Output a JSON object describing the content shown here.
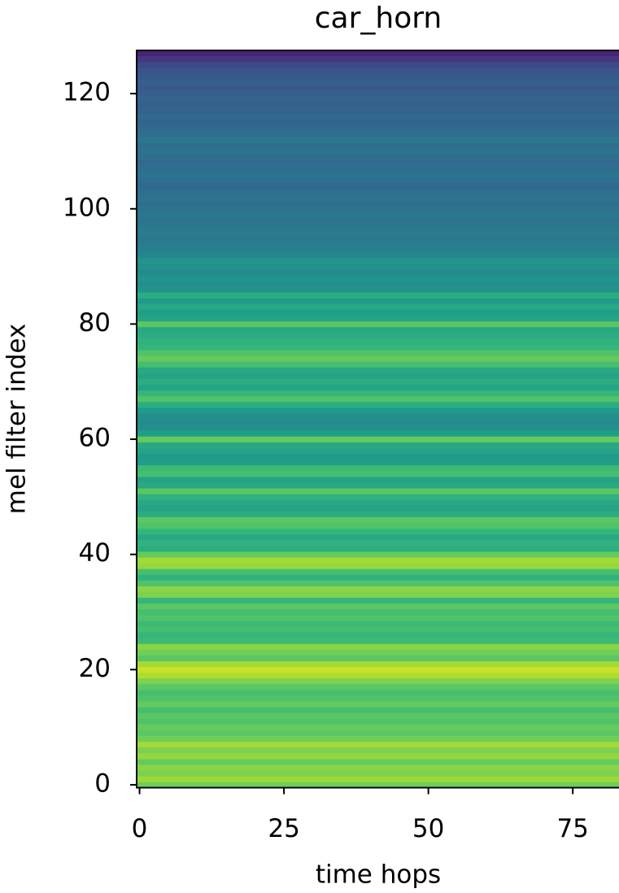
{
  "chart_data": {
    "type": "heatmap",
    "title": "car_horn",
    "xlabel": "time hops",
    "ylabel": "mel filter index",
    "colormap": "viridis",
    "zlim": [
      0,
      1
    ],
    "values": [
      0.78,
      0.85,
      0.8,
      0.82,
      0.76,
      0.84,
      0.8,
      0.86,
      0.78,
      0.74,
      0.76,
      0.72,
      0.74,
      0.7,
      0.76,
      0.72,
      0.7,
      0.74,
      0.8,
      0.88,
      0.92,
      0.86,
      0.74,
      0.78,
      0.82,
      0.68,
      0.66,
      0.7,
      0.68,
      0.72,
      0.7,
      0.74,
      0.66,
      0.8,
      0.82,
      0.72,
      0.64,
      0.7,
      0.84,
      0.86,
      0.76,
      0.62,
      0.64,
      0.6,
      0.66,
      0.72,
      0.74,
      0.62,
      0.58,
      0.6,
      0.64,
      0.74,
      0.6,
      0.58,
      0.7,
      0.68,
      0.56,
      0.54,
      0.58,
      0.6,
      0.76,
      0.56,
      0.5,
      0.48,
      0.5,
      0.54,
      0.62,
      0.72,
      0.66,
      0.58,
      0.62,
      0.58,
      0.6,
      0.7,
      0.76,
      0.72,
      0.66,
      0.64,
      0.62,
      0.6,
      0.74,
      0.58,
      0.56,
      0.6,
      0.54,
      0.62,
      0.52,
      0.5,
      0.52,
      0.48,
      0.5,
      0.52,
      0.46,
      0.44,
      0.42,
      0.4,
      0.42,
      0.4,
      0.38,
      0.4,
      0.38,
      0.36,
      0.38,
      0.36,
      0.34,
      0.36,
      0.38,
      0.36,
      0.34,
      0.36,
      0.38,
      0.36,
      0.4,
      0.36,
      0.34,
      0.32,
      0.34,
      0.32,
      0.3,
      0.32,
      0.3,
      0.28,
      0.3,
      0.28,
      0.26,
      0.22,
      0.16,
      0.1
    ],
    "xlim": [
      -0.5,
      83
    ],
    "xticks": [
      0,
      25,
      50,
      75
    ],
    "ylim": [
      -0.5,
      127.5
    ],
    "yticks": [
      0,
      20,
      40,
      60,
      80,
      100,
      120
    ]
  }
}
